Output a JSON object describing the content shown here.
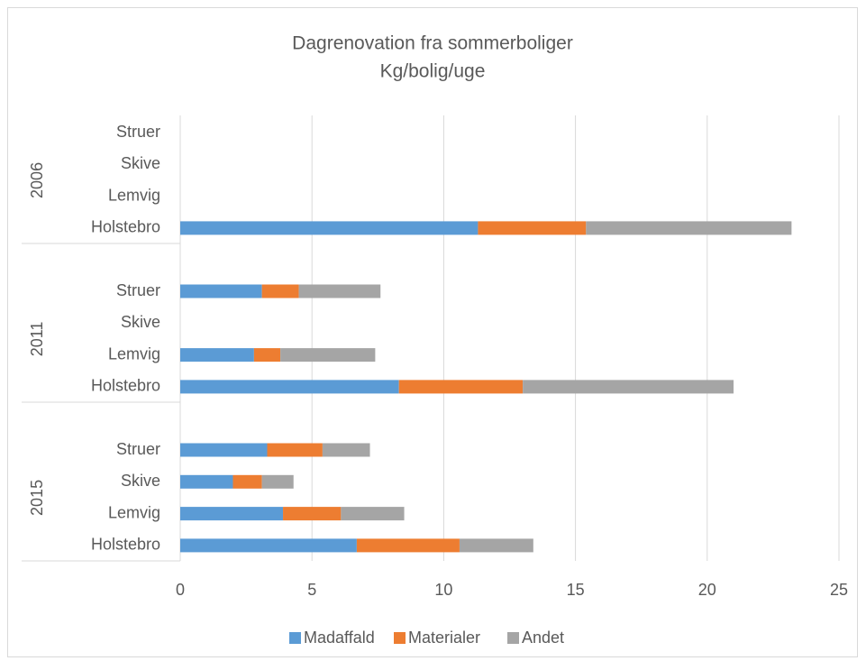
{
  "chart_data": {
    "type": "bar",
    "orientation": "horizontal",
    "stacked": true,
    "title": "Dagrenovation fra sommerboliger",
    "subtitle": "Kg/bolig/uge",
    "groups": [
      {
        "name": "2006",
        "categories": [
          "Struer",
          "Skive",
          "Lemvig",
          "Holstebro"
        ]
      },
      {
        "name": "2011",
        "categories": [
          "Struer",
          "Skive",
          "Lemvig",
          "Holstebro"
        ]
      },
      {
        "name": "2015",
        "categories": [
          "Struer",
          "Skive",
          "Lemvig",
          "Holstebro"
        ]
      }
    ],
    "series": [
      {
        "name": "Madaffald",
        "color": "#5b9bd5",
        "values": [
          null,
          null,
          null,
          11.3,
          3.1,
          null,
          2.8,
          8.3,
          3.3,
          2.0,
          3.9,
          6.7
        ]
      },
      {
        "name": "Materialer",
        "color": "#ed7d31",
        "values": [
          null,
          null,
          null,
          4.1,
          1.4,
          null,
          1.0,
          4.7,
          2.1,
          1.1,
          2.2,
          3.9
        ]
      },
      {
        "name": "Andet",
        "color": "#a5a5a5",
        "values": [
          null,
          null,
          null,
          7.8,
          3.1,
          null,
          3.6,
          8.0,
          1.8,
          1.2,
          2.4,
          2.8
        ]
      }
    ],
    "xlim": [
      0,
      25
    ],
    "xticks": [
      0,
      5,
      10,
      15,
      20,
      25
    ],
    "grid": true,
    "legend": "bottom"
  }
}
